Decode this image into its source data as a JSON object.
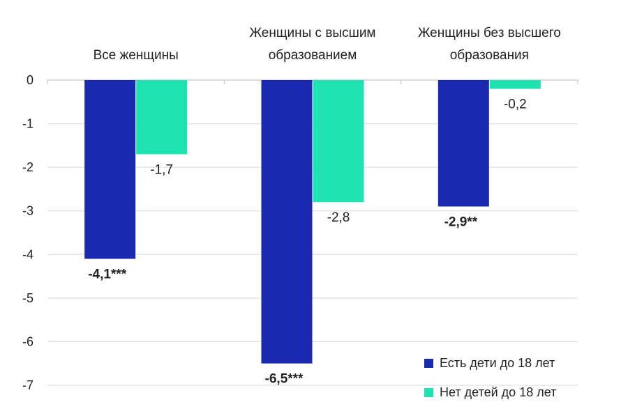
{
  "chart_data": {
    "type": "bar",
    "categories": [
      [
        "Все женщины"
      ],
      [
        "Женщины с высшим",
        "образованием"
      ],
      [
        "Женщины без высшего",
        "образования"
      ]
    ],
    "series": [
      {
        "name": "Есть дети до 18 лет",
        "color": "#1a2ab0",
        "values": [
          -4.1,
          -6.5,
          -2.9
        ],
        "labels": [
          "-4,1***",
          "-6,5***",
          "-2,9**"
        ],
        "label_bold": true
      },
      {
        "name": "Нет детей до 18 лет",
        "color": "#1ee3b0",
        "values": [
          -1.7,
          -2.8,
          -0.2
        ],
        "labels": [
          "-1,7",
          "-2,8",
          "-0,2"
        ],
        "label_bold": false
      }
    ],
    "yticks": [
      0,
      -1,
      -2,
      -3,
      -4,
      -5,
      -6,
      -7
    ],
    "ylim": [
      -7,
      0
    ],
    "grid": true,
    "legend_position": "bottom-right",
    "title": "",
    "xlabel": "",
    "ylabel": ""
  }
}
